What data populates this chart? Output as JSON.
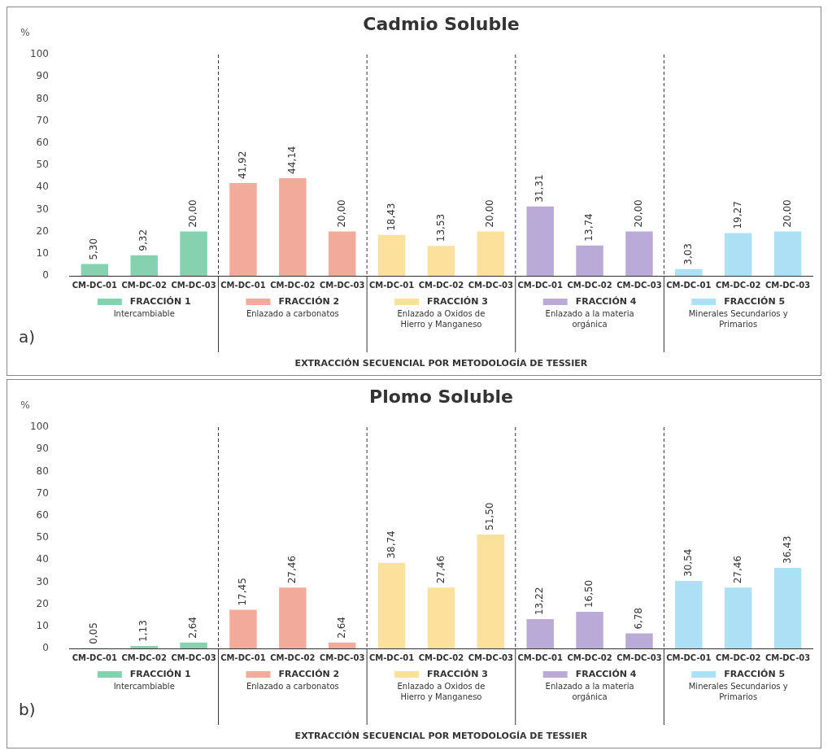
{
  "chart_data": [
    {
      "type": "bar",
      "title": "Cadmio Soluble",
      "ylabel": "%",
      "xlabel": "EXTRACCIÓN SECUENCIAL POR METODOLOGÍA DE TESSIER",
      "categories": [
        "CM-DC-01",
        "CM-DC-02",
        "CM-DC-03",
        "CM-DC-01",
        "CM-DC-02",
        "CM-DC-03",
        "CM-DC-01",
        "CM-DC-02",
        "CM-DC-03",
        "CM-DC-01",
        "CM-DC-02",
        "CM-DC-03",
        "CM-DC-01",
        "CM-DC-02",
        "CM-DC-03"
      ],
      "ylim": [
        0,
        100
      ],
      "yticks": [
        0,
        10,
        20,
        30,
        40,
        50,
        60,
        70,
        80,
        90,
        100
      ],
      "legend": "bottom",
      "series": [
        {
          "name": "FRACCIÓN 1",
          "color": "#86d1b0",
          "values": [
            5.3,
            9.32,
            20.0,
            null,
            null,
            null,
            null,
            null,
            null,
            null,
            null,
            null,
            null,
            null,
            null
          ],
          "value_labels": [
            "5,30",
            "9,32",
            "20,00",
            null,
            null,
            null,
            null,
            null,
            null,
            null,
            null,
            null,
            null,
            null,
            null
          ]
        },
        {
          "name": "FRACCIÓN 2",
          "color": "#f2aa9b",
          "values": [
            null,
            null,
            null,
            41.92,
            44.14,
            20.0,
            null,
            null,
            null,
            null,
            null,
            null,
            null,
            null,
            null
          ],
          "value_labels": [
            null,
            null,
            null,
            "41,92",
            "44,14",
            "20,00",
            null,
            null,
            null,
            null,
            null,
            null,
            null,
            null,
            null
          ]
        },
        {
          "name": "FRACCIÓN 3",
          "color": "#fbe19b",
          "values": [
            null,
            null,
            null,
            null,
            null,
            null,
            18.43,
            13.53,
            20.0,
            null,
            null,
            null,
            null,
            null,
            null
          ],
          "value_labels": [
            null,
            null,
            null,
            null,
            null,
            null,
            "18,43",
            "13,53",
            "20,00",
            null,
            null,
            null,
            null,
            null,
            null
          ]
        },
        {
          "name": "FRACCIÓN 4",
          "color": "#baaad8",
          "values": [
            null,
            null,
            null,
            null,
            null,
            null,
            null,
            null,
            null,
            31.31,
            13.74,
            20.0,
            null,
            null,
            null
          ],
          "value_labels": [
            null,
            null,
            null,
            null,
            null,
            null,
            null,
            null,
            null,
            "31,31",
            "13,74",
            "20,00",
            null,
            null,
            null
          ]
        },
        {
          "name": "FRACCIÓN 5",
          "color": "#ade0f4",
          "values": [
            null,
            null,
            null,
            null,
            null,
            null,
            null,
            null,
            null,
            null,
            null,
            null,
            3.03,
            19.27,
            20.0
          ],
          "value_labels": [
            null,
            null,
            null,
            null,
            null,
            null,
            null,
            null,
            null,
            null,
            null,
            null,
            "3,03",
            "19,27",
            "20,00"
          ]
        }
      ],
      "annotations": [
        "Intercambiable",
        "Enlazado a carbonatos",
        "Enlazado a Oxidos de Hierro y Manganeso",
        "Enlazado a la materia orgánica",
        "Minerales Secundarios y Primarios",
        "a)"
      ]
    },
    {
      "type": "bar",
      "title": "Plomo Soluble",
      "ylabel": "%",
      "xlabel": "EXTRACCIÓN SECUENCIAL POR METODOLOGÍA DE TESSIER",
      "categories": [
        "CM-DC-01",
        "CM-DC-02",
        "CM-DC-03",
        "CM-DC-01",
        "CM-DC-02",
        "CM-DC-03",
        "CM-DC-01",
        "CM-DC-02",
        "CM-DC-03",
        "CM-DC-01",
        "CM-DC-02",
        "CM-DC-03",
        "CM-DC-01",
        "CM-DC-02",
        "CM-DC-03"
      ],
      "ylim": [
        0,
        100
      ],
      "yticks": [
        0,
        10,
        20,
        30,
        40,
        50,
        60,
        70,
        80,
        90,
        100
      ],
      "legend": "bottom",
      "series": [
        {
          "name": "FRACCIÓN 1",
          "color": "#86d1b0",
          "values": [
            0.05,
            1.13,
            2.64,
            null,
            null,
            null,
            null,
            null,
            null,
            null,
            null,
            null,
            null,
            null,
            null
          ],
          "value_labels": [
            "0,05",
            "1,13",
            "2,64",
            null,
            null,
            null,
            null,
            null,
            null,
            null,
            null,
            null,
            null,
            null,
            null
          ]
        },
        {
          "name": "FRACCIÓN 2",
          "color": "#f2aa9b",
          "values": [
            null,
            null,
            null,
            17.45,
            27.46,
            2.64,
            null,
            null,
            null,
            null,
            null,
            null,
            null,
            null,
            null
          ],
          "value_labels": [
            null,
            null,
            null,
            "17,45",
            "27,46",
            "2,64",
            null,
            null,
            null,
            null,
            null,
            null,
            null,
            null,
            null
          ]
        },
        {
          "name": "FRACCIÓN 3",
          "color": "#fbe19b",
          "values": [
            null,
            null,
            null,
            null,
            null,
            null,
            38.74,
            27.46,
            51.5,
            null,
            null,
            null,
            null,
            null,
            null
          ],
          "value_labels": [
            null,
            null,
            null,
            null,
            null,
            null,
            "38,74",
            "27,46",
            "51,50",
            null,
            null,
            null,
            null,
            null,
            null
          ]
        },
        {
          "name": "FRACCIÓN 4",
          "color": "#baaad8",
          "values": [
            null,
            null,
            null,
            null,
            null,
            null,
            null,
            null,
            null,
            13.22,
            16.5,
            6.78,
            null,
            null,
            null
          ],
          "value_labels": [
            null,
            null,
            null,
            null,
            null,
            null,
            null,
            null,
            null,
            "13,22",
            "16,50",
            "6,78",
            null,
            null,
            null
          ]
        },
        {
          "name": "FRACCIÓN 5",
          "color": "#ade0f4",
          "values": [
            null,
            null,
            null,
            null,
            null,
            null,
            null,
            null,
            null,
            null,
            null,
            null,
            30.54,
            27.46,
            36.43
          ],
          "value_labels": [
            null,
            null,
            null,
            null,
            null,
            null,
            null,
            null,
            null,
            null,
            null,
            null,
            "30,54",
            "27,46",
            "36,43"
          ]
        }
      ],
      "annotations": [
        "Intercambiable",
        "Enlazado a carbonatos",
        "Enlazado a Oxidos de Hierro y Manganeso",
        "Enlazado a la materia orgánica",
        "Minerales Secundarios y Primarios",
        "b)"
      ]
    }
  ]
}
